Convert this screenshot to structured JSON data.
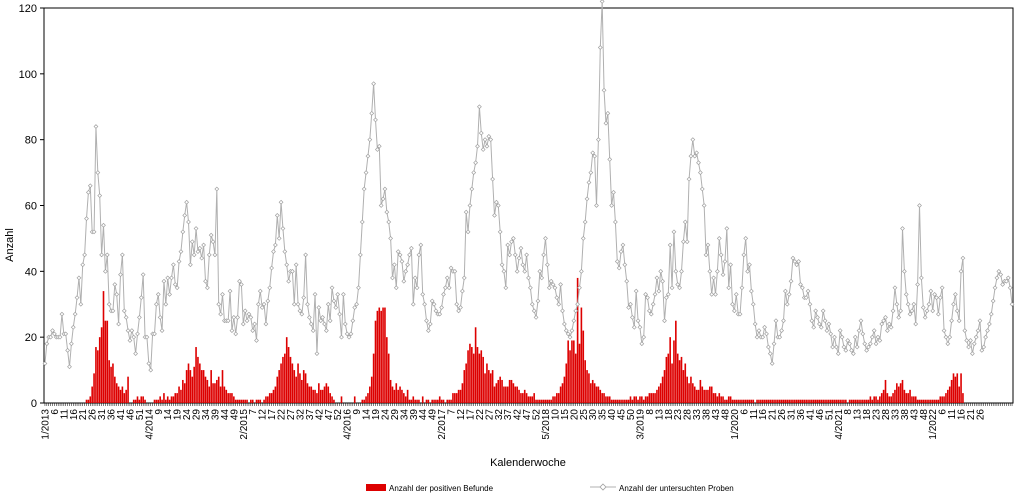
{
  "chart_data": {
    "type": "bar+line",
    "ylabel": "Anzahl",
    "xlabel": "Kalenderwoche",
    "ylim": [
      0,
      120
    ],
    "yticks": [
      0,
      20,
      40,
      60,
      80,
      100,
      120
    ],
    "grid": false,
    "legend_position": "bottom",
    "x_tick_labels": [
      "1/2013",
      "6",
      "11",
      "16",
      "21",
      "26",
      "31",
      "36",
      "41",
      "46",
      "51",
      "4/2014",
      "9",
      "14",
      "19",
      "24",
      "29",
      "34",
      "39",
      "44",
      "49",
      "2/2015",
      "7",
      "12",
      "17",
      "22",
      "27",
      "32",
      "37",
      "42",
      "47",
      "52",
      "4/2016",
      "9",
      "14",
      "19",
      "24",
      "29",
      "34",
      "39",
      "44",
      "49",
      "2/2017",
      "7",
      "12",
      "17",
      "22",
      "27",
      "32",
      "37",
      "42",
      "47",
      "52",
      "5/2018",
      "10",
      "15",
      "20",
      "25",
      "30",
      "35",
      "40",
      "45",
      "50",
      "3/2019",
      "8",
      "13",
      "18",
      "23",
      "28",
      "33",
      "38",
      "43",
      "48",
      "1/2020",
      "6",
      "11",
      "16",
      "21",
      "26",
      "31",
      "36",
      "41",
      "46",
      "51",
      "4/2021",
      "8",
      "13",
      "18",
      "23",
      "28",
      "33",
      "38",
      "43",
      "48",
      "1/2022",
      "6",
      "11",
      "16",
      "21",
      "26"
    ],
    "series": [
      {
        "name": "Anzahl der positiven Befunde",
        "kind": "bar",
        "color": "#dd0000",
        "values": [
          0,
          0,
          0,
          0,
          0,
          0,
          0,
          0,
          0,
          0,
          0,
          0,
          0,
          0,
          0,
          0,
          0,
          0,
          0,
          0,
          0,
          0,
          1,
          1,
          2,
          5,
          9,
          17,
          16,
          20,
          23,
          34,
          25,
          25,
          13,
          11,
          12,
          8,
          6,
          5,
          4,
          5,
          3,
          4,
          8,
          0,
          0,
          1,
          1,
          2,
          1,
          2,
          2,
          1,
          0,
          0,
          0,
          0,
          1,
          1,
          1,
          2,
          1,
          3,
          1,
          2,
          1,
          2,
          2,
          3,
          3,
          5,
          4,
          7,
          6,
          10,
          12,
          10,
          8,
          11,
          17,
          14,
          12,
          10,
          10,
          8,
          7,
          5,
          10,
          6,
          6,
          7,
          8,
          5,
          10,
          5,
          4,
          3,
          3,
          3,
          2,
          1,
          1,
          1,
          1,
          1,
          1,
          1,
          0,
          1,
          1,
          0,
          1,
          1,
          1,
          0,
          1,
          2,
          2,
          3,
          3,
          4,
          5,
          8,
          10,
          12,
          14,
          15,
          20,
          17,
          14,
          12,
          10,
          8,
          12,
          9,
          7,
          10,
          9,
          6,
          5,
          5,
          4,
          4,
          3,
          6,
          4,
          4,
          5,
          6,
          5,
          3,
          2,
          1,
          0,
          0,
          0,
          2,
          0,
          0,
          0,
          0,
          0,
          0,
          2,
          0,
          0,
          0,
          1,
          1,
          2,
          3,
          5,
          8,
          15,
          25,
          28,
          29,
          28,
          29,
          29,
          20,
          15,
          7,
          5,
          4,
          6,
          4,
          5,
          4,
          3,
          2,
          4,
          1,
          1,
          2,
          1,
          1,
          1,
          0,
          2,
          0,
          1,
          1,
          0,
          1,
          1,
          1,
          1,
          2,
          1,
          1,
          0,
          1,
          1,
          1,
          3,
          3,
          3,
          4,
          4,
          6,
          10,
          12,
          16,
          18,
          17,
          15,
          23,
          17,
          15,
          16,
          14,
          9,
          12,
          10,
          9,
          10,
          5,
          6,
          7,
          8,
          7,
          5,
          5,
          5,
          7,
          7,
          6,
          5,
          5,
          4,
          3,
          3,
          4,
          3,
          2,
          2,
          2,
          3,
          1,
          1,
          1,
          1,
          1,
          1,
          1,
          1,
          1,
          2,
          2,
          3,
          3,
          5,
          6,
          8,
          12,
          19,
          16,
          19,
          19,
          15,
          38,
          18,
          29,
          22,
          13,
          10,
          9,
          6,
          7,
          6,
          5,
          5,
          4,
          3,
          3,
          2,
          2,
          2,
          1,
          1,
          1,
          1,
          1,
          1,
          1,
          1,
          1,
          1,
          2,
          1,
          2,
          2,
          1,
          2,
          2,
          1,
          2,
          2,
          3,
          3,
          3,
          3,
          4,
          5,
          6,
          8,
          10,
          14,
          15,
          20,
          12,
          19,
          25,
          15,
          13,
          14,
          10,
          12,
          8,
          6,
          8,
          6,
          5,
          4,
          4,
          7,
          5,
          4,
          4,
          4,
          5,
          5,
          3,
          3,
          2,
          3,
          2,
          2,
          1,
          1,
          2,
          2,
          1,
          1,
          1,
          1,
          1,
          1,
          1,
          1,
          1,
          1,
          1,
          1,
          0,
          1,
          1,
          1,
          1,
          1,
          1,
          1,
          1,
          1,
          1,
          1,
          1,
          1,
          1,
          1,
          1,
          1,
          1,
          1,
          1,
          1,
          1,
          1,
          1,
          1,
          1,
          1,
          1,
          1,
          1,
          1,
          1,
          1,
          1,
          1,
          1,
          1,
          1,
          1,
          1,
          1,
          1,
          1,
          1,
          1,
          1,
          1,
          1,
          0,
          1,
          1,
          1,
          1,
          1,
          1,
          1,
          1,
          1,
          1,
          1,
          2,
          1,
          2,
          2,
          1,
          2,
          3,
          4,
          7,
          3,
          2,
          2,
          3,
          4,
          6,
          5,
          6,
          7,
          4,
          3,
          3,
          4,
          2,
          2,
          2,
          1,
          1,
          1,
          1,
          1,
          1,
          1,
          1,
          1,
          1,
          1,
          1,
          2,
          2,
          2,
          3,
          4,
          5,
          7,
          9,
          8,
          9,
          5,
          9,
          3
        ]
      },
      {
        "name": "Anzahl der untersuchten Proben",
        "kind": "line",
        "color": "#b0b0b0",
        "values": [
          12,
          18,
          20,
          20,
          22,
          21,
          20,
          20,
          20,
          27,
          21,
          21,
          16,
          11,
          18,
          23,
          27,
          32,
          38,
          30,
          42,
          45,
          56,
          64,
          66,
          52,
          52,
          84,
          70,
          63,
          45,
          54,
          40,
          45,
          30,
          28,
          28,
          36,
          33,
          24,
          39,
          45,
          28,
          26,
          22,
          19,
          22,
          20,
          15,
          21,
          26,
          32,
          39,
          20,
          20,
          12,
          10,
          21,
          21,
          30,
          33,
          26,
          22,
          37,
          30,
          38,
          33,
          38,
          42,
          36,
          35,
          43,
          46,
          52,
          57,
          61,
          55,
          42,
          49,
          45,
          53,
          46,
          47,
          44,
          48,
          37,
          35,
          45,
          51,
          49,
          45,
          65,
          30,
          27,
          33,
          25,
          25,
          25,
          34,
          22,
          26,
          21,
          26,
          37,
          36,
          24,
          28,
          25,
          27,
          26,
          22,
          24,
          19,
          30,
          34,
          29,
          30,
          24,
          31,
          35,
          41,
          46,
          48,
          57,
          50,
          61,
          53,
          46,
          42,
          37,
          40,
          40,
          30,
          42,
          30,
          28,
          27,
          32,
          45,
          30,
          26,
          24,
          22,
          33,
          15,
          29,
          25,
          26,
          24,
          22,
          30,
          25,
          35,
          31,
          29,
          33,
          27,
          20,
          33,
          24,
          21,
          20,
          21,
          25,
          29,
          30,
          35,
          45,
          55,
          65,
          70,
          75,
          80,
          88,
          97,
          86,
          77,
          78,
          60,
          62,
          65,
          58,
          55,
          50,
          38,
          42,
          35,
          46,
          45,
          43,
          37,
          40,
          42,
          45,
          47,
          30,
          38,
          35,
          45,
          48,
          33,
          30,
          25,
          22,
          24,
          31,
          30,
          28,
          27,
          27,
          29,
          33,
          35,
          38,
          35,
          41,
          40,
          40,
          30,
          28,
          29,
          34,
          38,
          58,
          52,
          60,
          65,
          70,
          73,
          78,
          90,
          82,
          77,
          80,
          78,
          81,
          80,
          68,
          57,
          61,
          60,
          52,
          42,
          40,
          35,
          48,
          45,
          49,
          50,
          45,
          40,
          44,
          47,
          42,
          40,
          45,
          38,
          35,
          30,
          28,
          26,
          31,
          40,
          38,
          45,
          50,
          42,
          35,
          37,
          36,
          35,
          32,
          30,
          36,
          28,
          24,
          22,
          21,
          20,
          22,
          25,
          28,
          30,
          35,
          40,
          50,
          55,
          62,
          67,
          70,
          76,
          75,
          60,
          80,
          108,
          122,
          95,
          85,
          88,
          74,
          60,
          64,
          55,
          43,
          41,
          46,
          48,
          42,
          37,
          29,
          30,
          26,
          23,
          34,
          25,
          23,
          18,
          20,
          33,
          32,
          28,
          27,
          30,
          33,
          38,
          34,
          40,
          37,
          25,
          32,
          33,
          48,
          35,
          52,
          40,
          36,
          35,
          40,
          49,
          55,
          49,
          68,
          75,
          80,
          75,
          76,
          73,
          70,
          65,
          60,
          45,
          48,
          40,
          33,
          38,
          33,
          40,
          50,
          45,
          39,
          43,
          53,
          35,
          42,
          30,
          28,
          33,
          27,
          27,
          35,
          45,
          50,
          40,
          42,
          34,
          30,
          24,
          20,
          22,
          20,
          20,
          23,
          21,
          17,
          15,
          12,
          18,
          25,
          20,
          20,
          22,
          25,
          34,
          30,
          33,
          37,
          44,
          43,
          42,
          43,
          36,
          35,
          32,
          32,
          34,
          30,
          25,
          23,
          28,
          26,
          24,
          23,
          28,
          25,
          22,
          24,
          21,
          17,
          20,
          17,
          15,
          22,
          20,
          17,
          16,
          19,
          18,
          16,
          15,
          20,
          17,
          22,
          25,
          21,
          18,
          16,
          17,
          18,
          20,
          22,
          18,
          20,
          19,
          24,
          25,
          26,
          22,
          24,
          23,
          28,
          35,
          30,
          26,
          28,
          53,
          40,
          33,
          30,
          27,
          28,
          30,
          24,
          36,
          60,
          38,
          29,
          26,
          28,
          30,
          34,
          28,
          33,
          32,
          27,
          32,
          35,
          22,
          20,
          18,
          20,
          25,
          30,
          33,
          28,
          25,
          40,
          44,
          22,
          19,
          17,
          19,
          15,
          18,
          20,
          22,
          25,
          16,
          17,
          20,
          22,
          24,
          27,
          31,
          35,
          38,
          40,
          39,
          36,
          37,
          37,
          38,
          35,
          30
        ]
      }
    ]
  }
}
